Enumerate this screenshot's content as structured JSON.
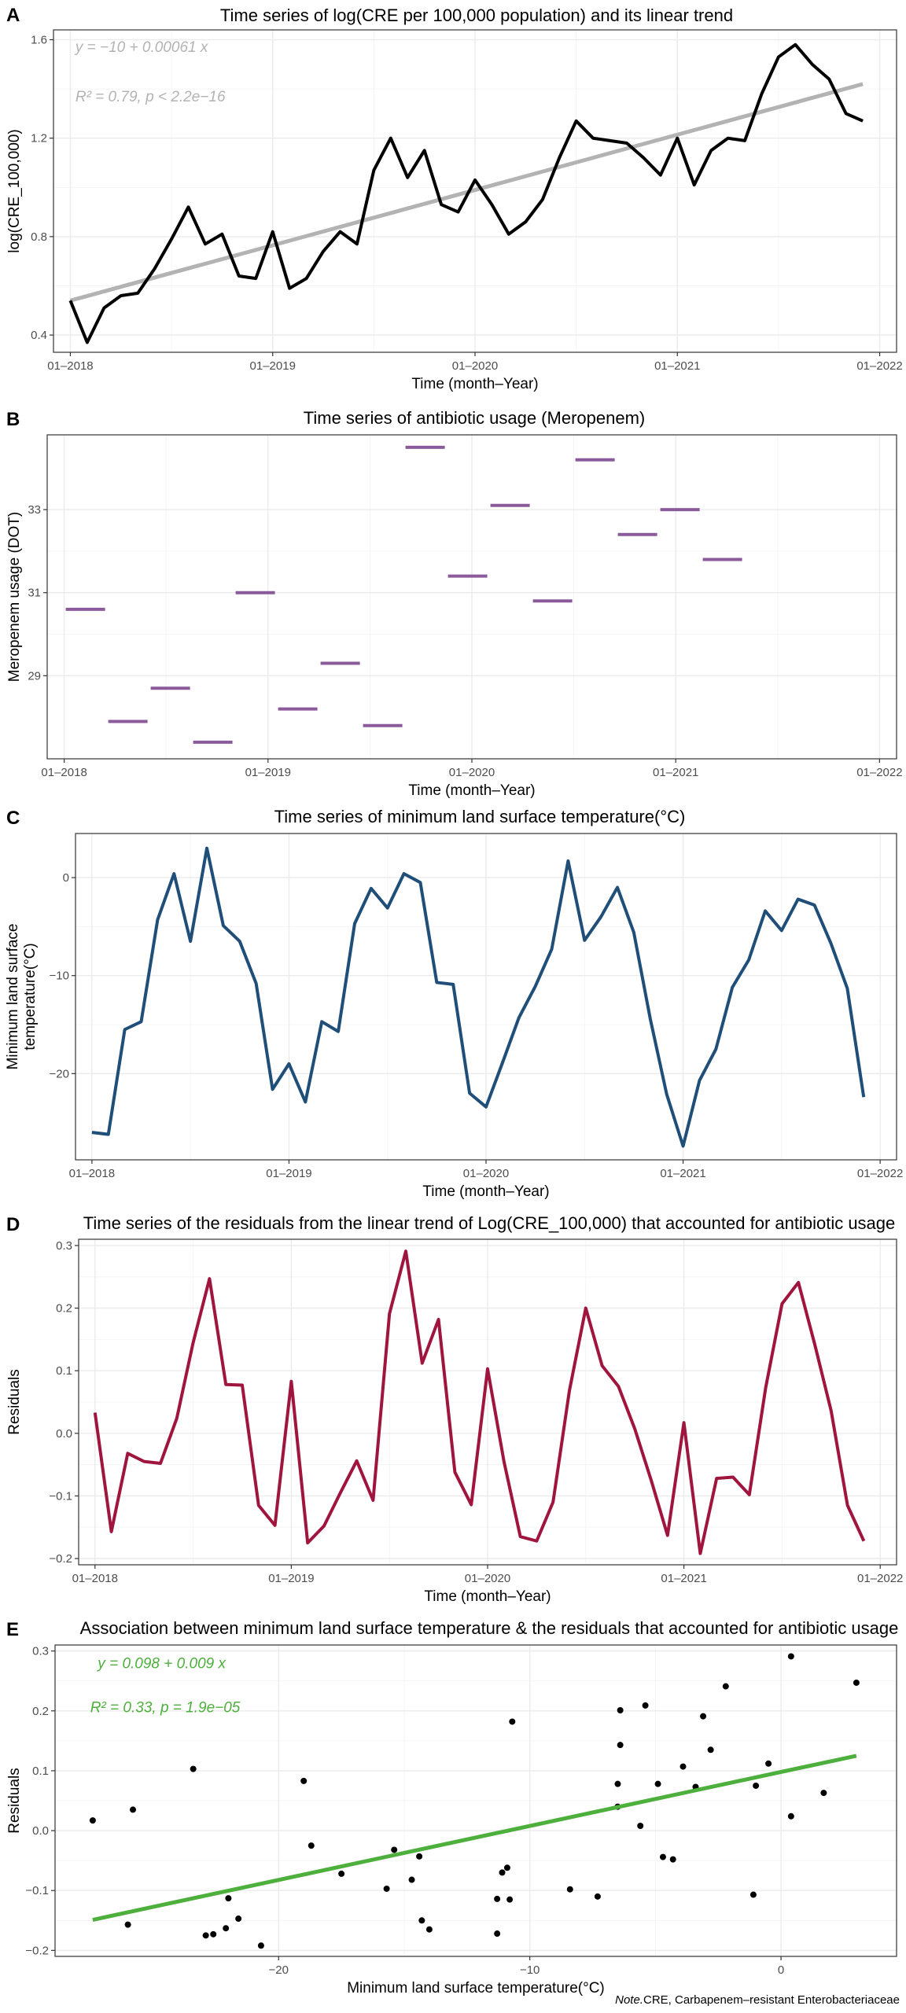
{
  "chart_data": [
    {
      "id": "A",
      "panel_label": "A",
      "type": "line",
      "title": "Time series of log(CRE per 100,000 population) and its linear trend",
      "xlabel": "Time (month–Year)",
      "ylabel": "log(CRE_100,000)",
      "ylabel_color": "#000000",
      "x_ticks": [
        "01–2018",
        "01–2019",
        "01–2020",
        "01–2021",
        "01–2022"
      ],
      "y_ticks": [
        "0.4",
        "0.8",
        "1.2",
        "1.6"
      ],
      "xlim": [
        -1,
        49
      ],
      "ylim": [
        0.33,
        1.64
      ],
      "series": [
        {
          "color": "#000000",
          "width": 4,
          "values": [
            0.54,
            0.37,
            0.51,
            0.56,
            0.57,
            0.67,
            0.79,
            0.92,
            0.77,
            0.81,
            0.64,
            0.63,
            0.82,
            0.59,
            0.63,
            0.74,
            0.82,
            0.77,
            1.07,
            1.2,
            1.04,
            1.15,
            0.93,
            0.9,
            1.03,
            0.93,
            0.81,
            0.86,
            0.95,
            1.12,
            1.27,
            1.2,
            1.19,
            1.18,
            1.12,
            1.05,
            1.2,
            1.01,
            1.15,
            1.2,
            1.19,
            1.38,
            1.53,
            1.58,
            1.5,
            1.44,
            1.3,
            1.27
          ]
        }
      ],
      "trend": {
        "from": [
          0,
          0.54
        ],
        "to": [
          47,
          1.42
        ],
        "color": "#b3b3b3",
        "width": 5
      },
      "annotations": [
        {
          "text": "y = −10 + 0.00061 x",
          "color": "#b3b3b3",
          "x": 0.3,
          "y": 1.55
        },
        {
          "text": "R² = 0.79, p < 2.2e−16",
          "color": "#b3b3b3",
          "x": 0.3,
          "y": 1.35
        }
      ]
    },
    {
      "id": "B",
      "panel_label": "B",
      "type": "step",
      "title": "Time series of antibiotic usage (Meropenem)",
      "xlabel": "Time (month–Year)",
      "ylabel": "Meropenem usage (DOT)",
      "ylabel_color": "#8a5a9a",
      "x_ticks": [
        "01–2018",
        "01–2019",
        "01–2020",
        "01–2021",
        "01–2022"
      ],
      "y_ticks": [
        "29",
        "31",
        "33"
      ],
      "xlim": [
        -1,
        49
      ],
      "ylim": [
        27.0,
        34.8
      ],
      "segment_color": "#8a5a9a",
      "segments": [
        {
          "x0": 0,
          "x1": 2.5,
          "value": 30.6
        },
        {
          "x0": 2.5,
          "x1": 5,
          "value": 27.9
        },
        {
          "x0": 5,
          "x1": 7.5,
          "value": 28.7
        },
        {
          "x0": 7.5,
          "x1": 10,
          "value": 27.4
        },
        {
          "x0": 10,
          "x1": 12.5,
          "value": 31.0
        },
        {
          "x0": 12.5,
          "x1": 15,
          "value": 28.2
        },
        {
          "x0": 15,
          "x1": 17.5,
          "value": 29.3
        },
        {
          "x0": 17.5,
          "x1": 20,
          "value": 27.8
        },
        {
          "x0": 20,
          "x1": 22.5,
          "value": 34.5
        },
        {
          "x0": 22.5,
          "x1": 25,
          "value": 31.4
        },
        {
          "x0": 25,
          "x1": 27.5,
          "value": 33.1
        },
        {
          "x0": 27.5,
          "x1": 30,
          "value": 30.8
        },
        {
          "x0": 30,
          "x1": 32.5,
          "value": 34.2
        },
        {
          "x0": 32.5,
          "x1": 35,
          "value": 32.4
        },
        {
          "x0": 35,
          "x1": 37.5,
          "value": 33.0
        },
        {
          "x0": 37.5,
          "x1": 40,
          "value": 31.8
        }
      ]
    },
    {
      "id": "C",
      "panel_label": "C",
      "type": "line",
      "title": "Time series of minimum land surface temperature(°C)",
      "xlabel": "Time (month–Year)",
      "ylabel": "Minimum land surface temperature(°C)",
      "ylabel_lines": [
        "Minimum land surface",
        "temperature(°C)"
      ],
      "ylabel_color": "#1f4e79",
      "x_ticks": [
        "01–2018",
        "01–2019",
        "01–2020",
        "01–2021",
        "01–2022"
      ],
      "y_ticks": [
        "−20",
        "−10",
        "0"
      ],
      "xlim": [
        -1,
        49
      ],
      "ylim": [
        -28.8,
        4.5
      ],
      "series": [
        {
          "color": "#1f4e79",
          "width": 4,
          "values": [
            -26.0,
            -26.2,
            -15.5,
            -14.7,
            -4.3,
            0.4,
            -6.5,
            3.0,
            -4.9,
            -6.5,
            -10.8,
            -21.6,
            -19.0,
            -22.9,
            -14.7,
            -15.7,
            -4.7,
            -1.1,
            -3.1,
            0.4,
            -0.5,
            -10.7,
            -10.9,
            -22.0,
            -23.4,
            -18.9,
            -14.3,
            -11.1,
            -7.3,
            1.7,
            -6.4,
            -4.0,
            -1.0,
            -5.6,
            -14.4,
            -22.1,
            -27.4,
            -20.7,
            -17.5,
            -11.2,
            -8.4,
            -3.4,
            -5.4,
            -2.2,
            -2.8,
            -6.7,
            -11.3,
            -22.4
          ]
        }
      ]
    },
    {
      "id": "D",
      "panel_label": "D",
      "type": "line",
      "title": "Time series of the residuals from the linear trend of Log(CRE_100,000) that accounted for antibiotic usage",
      "xlabel": "Time (month–Year)",
      "ylabel": "Residuals",
      "ylabel_color": "#a0153e",
      "x_ticks": [
        "01–2018",
        "01–2019",
        "01–2020",
        "01–2021",
        "01–2022"
      ],
      "y_ticks": [
        "−0.2",
        "−0.1",
        "0.0",
        "0.1",
        "0.2",
        "0.3"
      ],
      "xlim": [
        -1,
        49
      ],
      "ylim": [
        -0.21,
        0.31
      ],
      "series": [
        {
          "color": "#a0153e",
          "width": 4,
          "values": [
            0.033,
            -0.157,
            -0.032,
            -0.045,
            -0.048,
            0.024,
            0.145,
            0.247,
            0.078,
            0.077,
            -0.115,
            -0.147,
            0.083,
            -0.175,
            -0.148,
            -0.095,
            -0.044,
            -0.107,
            0.191,
            0.291,
            0.112,
            0.182,
            -0.062,
            -0.114,
            0.103,
            -0.045,
            -0.165,
            -0.172,
            -0.11,
            0.068,
            0.2,
            0.108,
            0.075,
            0.007,
            -0.075,
            -0.163,
            0.017,
            -0.192,
            -0.072,
            -0.07,
            -0.098,
            0.073,
            0.207,
            0.241,
            0.142,
            0.036,
            -0.115,
            -0.172
          ]
        }
      ]
    },
    {
      "id": "E",
      "panel_label": "E",
      "type": "scatter",
      "title": "Association between minimum land surface temperature & the residuals that accounted for antibiotic usage",
      "xlabel": "Minimum land surface temperature(°C)",
      "xlabel_color": "#1f4e79",
      "ylabel": "Residuals",
      "ylabel_color": "#a0153e",
      "x_ticks": [
        "−20",
        "−10",
        "0"
      ],
      "y_ticks": [
        "−0.2",
        "−0.1",
        "0.0",
        "0.1",
        "0.2",
        "0.3"
      ],
      "xlim": [
        -28.9,
        4.6
      ],
      "ylim": [
        -0.21,
        0.31
      ],
      "points": [
        [
          -27.4,
          0.017
        ],
        [
          -26.0,
          -0.157
        ],
        [
          -25.8,
          0.035
        ],
        [
          -23.4,
          0.103
        ],
        [
          -22.9,
          -0.175
        ],
        [
          -22.6,
          -0.173
        ],
        [
          -22.1,
          -0.163
        ],
        [
          -22.0,
          -0.113
        ],
        [
          -21.6,
          -0.147
        ],
        [
          -20.7,
          -0.192
        ],
        [
          -19.0,
          0.083
        ],
        [
          -18.7,
          -0.025
        ],
        [
          -17.5,
          -0.072
        ],
        [
          -15.7,
          -0.097
        ],
        [
          -15.4,
          -0.032
        ],
        [
          -14.7,
          -0.082
        ],
        [
          -14.4,
          -0.043
        ],
        [
          -14.3,
          -0.15
        ],
        [
          -14.0,
          -0.165
        ],
        [
          -11.3,
          -0.172
        ],
        [
          -11.3,
          -0.114
        ],
        [
          -11.1,
          -0.07
        ],
        [
          -10.9,
          -0.062
        ],
        [
          -10.8,
          -0.115
        ],
        [
          -10.7,
          0.182
        ],
        [
          -8.4,
          -0.098
        ],
        [
          -7.3,
          -0.11
        ],
        [
          -6.5,
          0.078
        ],
        [
          -6.5,
          0.04
        ],
        [
          -6.4,
          0.143
        ],
        [
          -6.4,
          0.201
        ],
        [
          -5.6,
          0.008
        ],
        [
          -5.4,
          0.209
        ],
        [
          -4.9,
          0.078
        ],
        [
          -4.7,
          -0.044
        ],
        [
          -4.3,
          -0.048
        ],
        [
          -3.9,
          0.107
        ],
        [
          -3.4,
          0.073
        ],
        [
          -3.1,
          0.191
        ],
        [
          -2.8,
          0.135
        ],
        [
          -2.2,
          0.241
        ],
        [
          -1.1,
          -0.107
        ],
        [
          -1.0,
          0.075
        ],
        [
          -0.5,
          0.112
        ],
        [
          0.4,
          0.291
        ],
        [
          0.4,
          0.024
        ],
        [
          1.7,
          0.063
        ],
        [
          3.0,
          0.247
        ]
      ],
      "point_color": "#000000",
      "trend": {
        "from": [
          -27.4,
          -0.149
        ],
        "to": [
          3.0,
          0.125
        ],
        "color": "#4daf3c",
        "width": 5
      },
      "annotations": [
        {
          "text": "y = 0.098 + 0.009 x",
          "color": "#4daf3c",
          "x": -27.2,
          "y": 0.271
        },
        {
          "text": "R² = 0.33, p = 1.9e−05",
          "color": "#4daf3c",
          "x": -27.5,
          "y": 0.198
        }
      ]
    }
  ],
  "note": {
    "italic": "Note.",
    "text": "CRE, Carbapenem–resistant Enterobacteriaceae"
  }
}
